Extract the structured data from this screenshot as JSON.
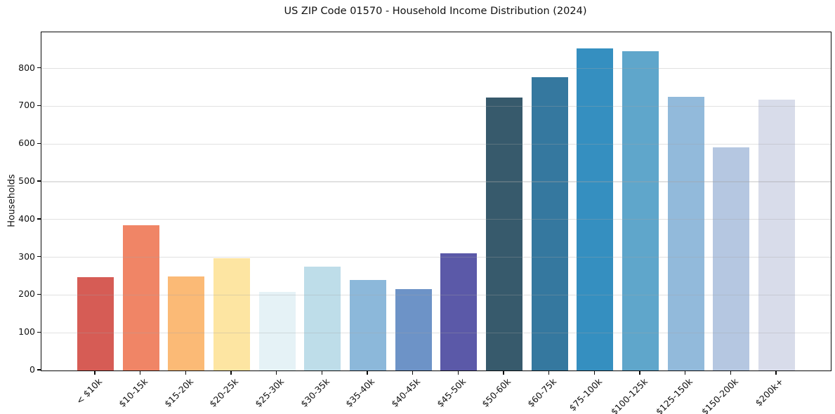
{
  "chart_data": {
    "type": "bar",
    "title": "US ZIP Code 01570 - Household Income Distribution (2024)",
    "xlabel": "",
    "ylabel": "Households",
    "categories": [
      "< $10k",
      "$10-15k",
      "$15-20k",
      "$20-25k",
      "$25-30k",
      "$30-35k",
      "$35-40k",
      "$40-45k",
      "$45-50k",
      "$50-60k",
      "$60-75k",
      "$75-100k",
      "$100-125k",
      "$125-150k",
      "$150-200k",
      "$200k+"
    ],
    "values": [
      248,
      385,
      250,
      298,
      208,
      275,
      240,
      216,
      310,
      723,
      777,
      853,
      845,
      725,
      592,
      717
    ],
    "bar_colors": [
      "#d65c55",
      "#f08566",
      "#fbba76",
      "#fde5a2",
      "#e5f2f6",
      "#bedde9",
      "#8cb8da",
      "#6d93c7",
      "#5b59a8",
      "#375a6c",
      "#35789f",
      "#358fc0",
      "#5fa6cb",
      "#92badb",
      "#b5c7e1",
      "#d8dcea"
    ],
    "ylim": [
      0,
      896
    ],
    "yticks": [
      0,
      100,
      200,
      300,
      400,
      500,
      600,
      700,
      800
    ],
    "grid": "horizontal",
    "gridline_color_over_white": "#e7e7e7",
    "gridline_rgba": "rgba(165,165,165,0.33)",
    "axis_color": "#0a0a0a",
    "background_color": "#ffffff",
    "legend": "none",
    "x_tick_rotation_deg": 45
  }
}
